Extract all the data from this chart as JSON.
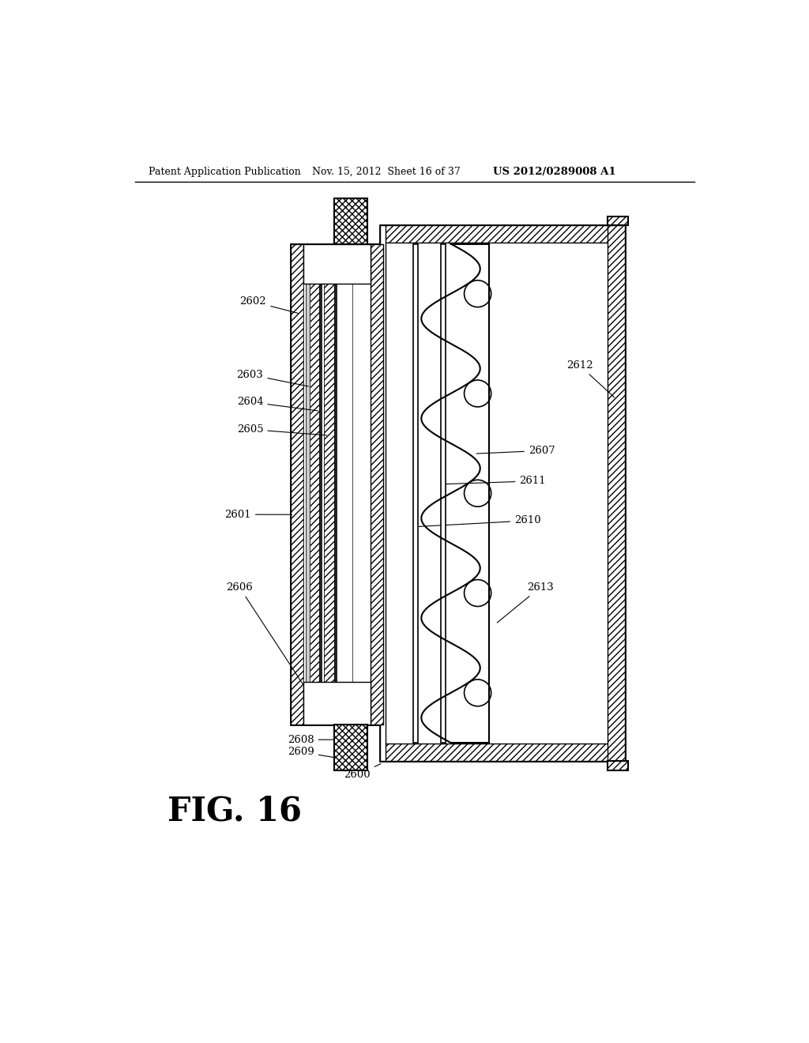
{
  "header_left": "Patent Application Publication",
  "header_mid": "Nov. 15, 2012  Sheet 16 of 37",
  "header_right": "US 2012/0289008 A1",
  "fig_label": "FIG. 16",
  "bg_color": "#ffffff",
  "line_color": "#000000"
}
